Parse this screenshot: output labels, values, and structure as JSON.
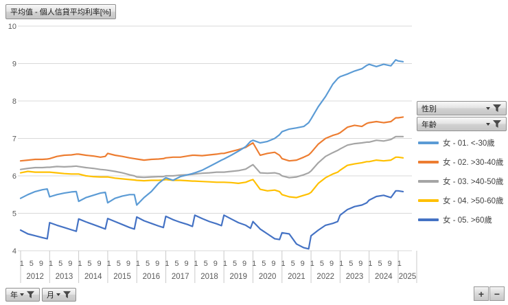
{
  "title": "平均值 - 個人信貸平均利率[%]",
  "filters": {
    "gender_label": "性別",
    "age_label": "年齡",
    "year_label": "年",
    "month_label": "月"
  },
  "zoom_controls": {
    "zoom_in": "+",
    "zoom_out": "−"
  },
  "colors": {
    "series_blue": "#5B9BD5",
    "series_orange": "#ED7D31",
    "series_gray": "#A5A5A5",
    "series_yellow": "#FFC000",
    "series_darkblue": "#4472C4",
    "gridline": "#D9D9D9",
    "axis_text": "#595959"
  },
  "chart_data": {
    "type": "line",
    "title": "平均值 - 個人信貸平均利率[%]",
    "xlabel": "",
    "ylabel": "",
    "ylim": [
      4,
      10
    ],
    "yticks": [
      10,
      9,
      8,
      7,
      6,
      5,
      4
    ],
    "grid": true,
    "legend_position": "right",
    "x_unit": "months since 2012-01 (sampled at Jan, Apr, Jul, Oct, Dec of each year)",
    "x": [
      0,
      3,
      6,
      9,
      11,
      12,
      15,
      18,
      21,
      23,
      24,
      27,
      30,
      33,
      35,
      36,
      39,
      42,
      45,
      47,
      48,
      51,
      54,
      57,
      59,
      60,
      63,
      66,
      69,
      71,
      72,
      75,
      78,
      81,
      83,
      84,
      87,
      90,
      93,
      95,
      96,
      99,
      102,
      105,
      107,
      108,
      111,
      114,
      117,
      119,
      120,
      123,
      126,
      129,
      131,
      132,
      135,
      138,
      141,
      143,
      144,
      147,
      150,
      153,
      155,
      156,
      158
    ],
    "years": [
      {
        "label": "2012",
        "month_ticks": [
          "1",
          "5",
          "9"
        ]
      },
      {
        "label": "2013",
        "month_ticks": [
          "1",
          "5",
          "9"
        ]
      },
      {
        "label": "2014",
        "month_ticks": [
          "1",
          "5",
          "9"
        ]
      },
      {
        "label": "2015",
        "month_ticks": [
          "1",
          "5",
          "9"
        ]
      },
      {
        "label": "2016",
        "month_ticks": [
          "1",
          "5",
          "9"
        ]
      },
      {
        "label": "2017",
        "month_ticks": [
          "1",
          "5",
          "9"
        ]
      },
      {
        "label": "2018",
        "month_ticks": [
          "1",
          "5",
          "9"
        ]
      },
      {
        "label": "2019",
        "month_ticks": [
          "1",
          "5",
          "9"
        ]
      },
      {
        "label": "2020",
        "month_ticks": [
          "1",
          "5",
          "9"
        ]
      },
      {
        "label": "2021",
        "month_ticks": [
          "1",
          "5",
          "9"
        ]
      },
      {
        "label": "2022",
        "month_ticks": [
          "1",
          "5",
          "9"
        ]
      },
      {
        "label": "2023",
        "month_ticks": [
          "1",
          "5",
          "9"
        ]
      },
      {
        "label": "2024",
        "month_ticks": [
          "1",
          "5",
          "9"
        ]
      },
      {
        "label": "2025",
        "month_ticks": [
          "1"
        ]
      }
    ],
    "series": [
      {
        "name": "女 - 01. <-30歲",
        "color": "#5B9BD5",
        "values": [
          5.4,
          5.5,
          5.58,
          5.63,
          5.65,
          5.44,
          5.5,
          5.54,
          5.57,
          5.58,
          5.32,
          5.42,
          5.48,
          5.54,
          5.56,
          5.28,
          5.4,
          5.46,
          5.5,
          5.5,
          5.22,
          5.42,
          5.58,
          5.8,
          5.9,
          5.95,
          5.88,
          5.98,
          6.03,
          6.06,
          6.08,
          6.15,
          6.25,
          6.35,
          6.42,
          6.45,
          6.55,
          6.66,
          6.78,
          6.92,
          6.95,
          6.88,
          6.92,
          7.0,
          7.1,
          7.18,
          7.25,
          7.28,
          7.32,
          7.42,
          7.52,
          7.85,
          8.12,
          8.45,
          8.6,
          8.65,
          8.72,
          8.8,
          8.86,
          8.95,
          8.98,
          8.92,
          8.98,
          8.94,
          9.1,
          9.07,
          9.05
        ]
      },
      {
        "name": "女 - 02. >30-40歲",
        "color": "#ED7D31",
        "values": [
          6.4,
          6.42,
          6.44,
          6.44,
          6.45,
          6.46,
          6.52,
          6.55,
          6.56,
          6.58,
          6.58,
          6.55,
          6.53,
          6.5,
          6.52,
          6.6,
          6.55,
          6.52,
          6.48,
          6.46,
          6.45,
          6.42,
          6.44,
          6.45,
          6.46,
          6.48,
          6.5,
          6.5,
          6.53,
          6.55,
          6.55,
          6.54,
          6.56,
          6.58,
          6.6,
          6.6,
          6.65,
          6.7,
          6.76,
          6.84,
          6.88,
          6.55,
          6.6,
          6.63,
          6.55,
          6.46,
          6.4,
          6.42,
          6.5,
          6.56,
          6.62,
          6.85,
          7.0,
          7.08,
          7.12,
          7.15,
          7.3,
          7.35,
          7.32,
          7.4,
          7.42,
          7.45,
          7.42,
          7.45,
          7.55,
          7.55,
          7.57
        ]
      },
      {
        "name": "女 - 03. >40-50歲",
        "color": "#A5A5A5",
        "values": [
          6.17,
          6.2,
          6.22,
          6.22,
          6.23,
          6.23,
          6.25,
          6.24,
          6.25,
          6.26,
          6.25,
          6.22,
          6.2,
          6.17,
          6.16,
          6.15,
          6.12,
          6.08,
          6.03,
          6.0,
          5.97,
          5.96,
          5.97,
          5.98,
          5.98,
          6.0,
          6.0,
          6.02,
          6.03,
          6.04,
          6.05,
          6.07,
          6.08,
          6.1,
          6.1,
          6.1,
          6.12,
          6.14,
          6.18,
          6.26,
          6.3,
          6.08,
          6.07,
          6.08,
          6.05,
          6.0,
          5.95,
          5.97,
          6.03,
          6.08,
          6.13,
          6.35,
          6.52,
          6.62,
          6.68,
          6.72,
          6.82,
          6.86,
          6.88,
          6.9,
          6.9,
          6.95,
          6.93,
          6.97,
          7.05,
          7.05,
          7.05
        ]
      },
      {
        "name": "女 - 04. >50-60歲",
        "color": "#FFC000",
        "values": [
          6.08,
          6.12,
          6.1,
          6.1,
          6.1,
          6.1,
          6.08,
          6.06,
          6.05,
          6.05,
          6.05,
          6.0,
          5.98,
          5.97,
          5.97,
          5.97,
          5.94,
          5.92,
          5.9,
          5.89,
          5.88,
          5.87,
          5.88,
          5.88,
          5.89,
          5.9,
          5.88,
          5.88,
          5.87,
          5.86,
          5.86,
          5.85,
          5.84,
          5.83,
          5.83,
          5.83,
          5.82,
          5.8,
          5.83,
          5.88,
          5.9,
          5.64,
          5.6,
          5.62,
          5.58,
          5.5,
          5.44,
          5.42,
          5.48,
          5.52,
          5.56,
          5.8,
          5.95,
          6.05,
          6.1,
          6.15,
          6.28,
          6.32,
          6.35,
          6.38,
          6.38,
          6.42,
          6.4,
          6.42,
          6.5,
          6.5,
          6.48
        ]
      },
      {
        "name": "女 - 05. >60歲",
        "color": "#4472C4",
        "values": [
          4.55,
          4.45,
          4.4,
          4.35,
          4.32,
          4.75,
          4.68,
          4.62,
          4.56,
          4.52,
          4.85,
          4.77,
          4.7,
          4.63,
          4.58,
          4.86,
          4.78,
          4.7,
          4.62,
          4.58,
          4.9,
          4.8,
          4.73,
          4.66,
          4.62,
          4.92,
          4.83,
          4.76,
          4.7,
          4.65,
          4.95,
          4.86,
          4.78,
          4.72,
          4.67,
          4.95,
          4.85,
          4.75,
          4.68,
          4.6,
          4.78,
          4.58,
          4.45,
          4.32,
          4.3,
          4.48,
          4.45,
          4.18,
          4.08,
          4.05,
          4.4,
          4.55,
          4.68,
          4.73,
          4.78,
          4.95,
          5.1,
          5.18,
          5.22,
          5.28,
          5.35,
          5.45,
          5.48,
          5.42,
          5.6,
          5.6,
          5.58
        ]
      }
    ]
  }
}
